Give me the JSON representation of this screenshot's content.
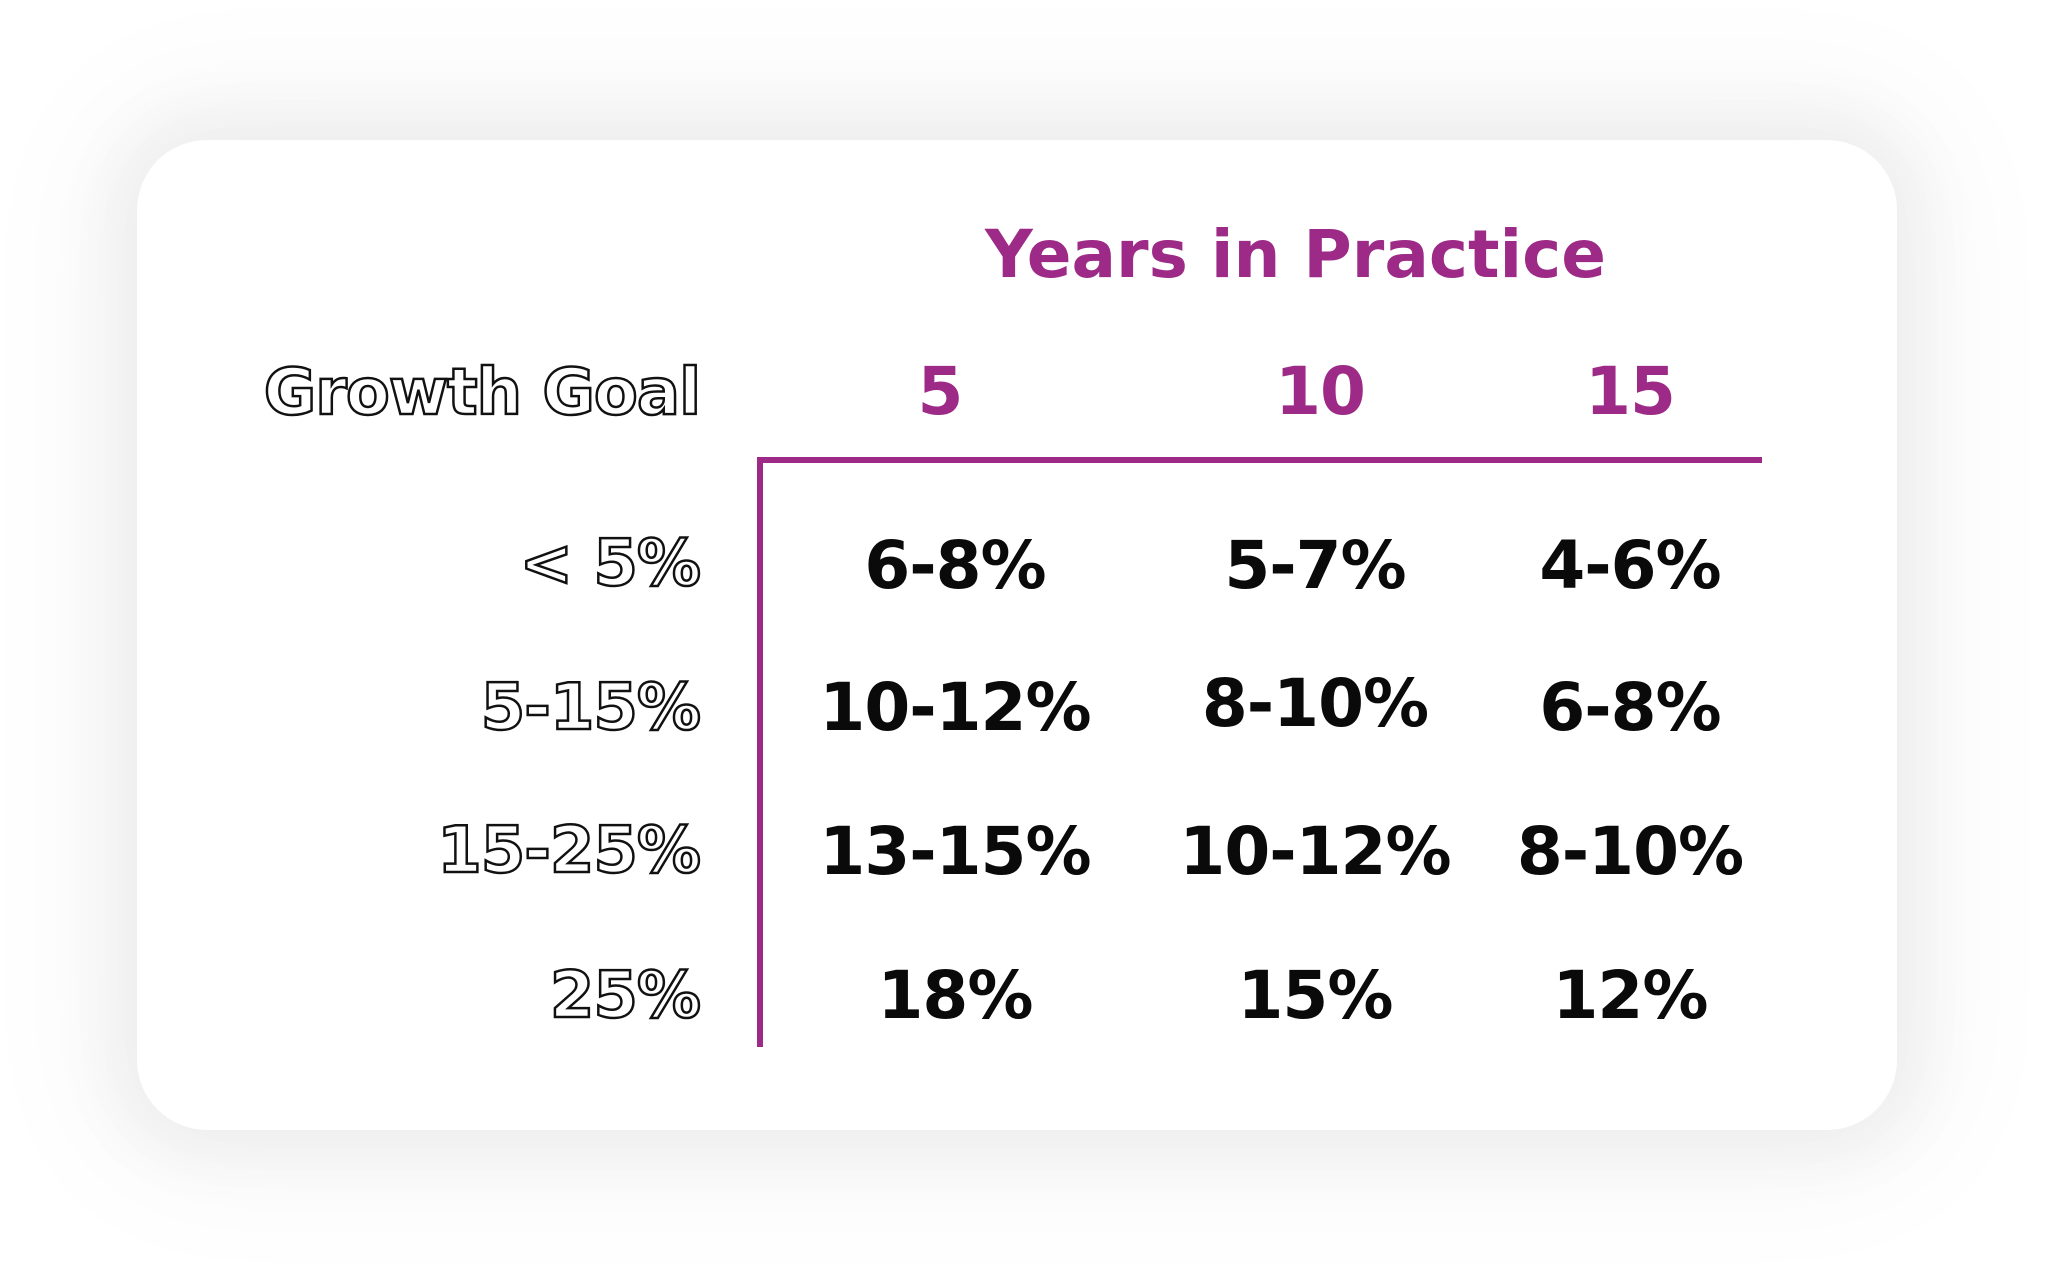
{
  "table": {
    "title": "Years in Practice",
    "row_header_label": "Growth Goal",
    "columns": [
      "5",
      "10",
      "15"
    ],
    "rows": [
      {
        "label": "< 5%",
        "values": [
          "6-8%",
          "5-7%",
          "4-6%"
        ]
      },
      {
        "label": "5-15%",
        "values": [
          "10-12%",
          "8-10%",
          "6-8%"
        ]
      },
      {
        "label": "15-25%",
        "values": [
          "13-15%",
          "10-12%",
          "8-10%"
        ]
      },
      {
        "label": "25%",
        "values": [
          "18%",
          "15%",
          "12%"
        ]
      }
    ]
  },
  "colors": {
    "accent": "#9c2a86",
    "text": "#0a0a0a",
    "card_background": "#ffffff"
  }
}
